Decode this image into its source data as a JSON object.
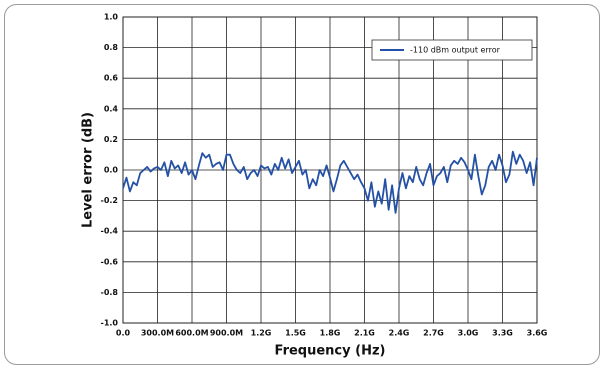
{
  "chart_data": {
    "type": "line",
    "xlabel": "Frequency (Hz)",
    "ylabel": "Level error (dB)",
    "xlim": [
      0,
      3600000000
    ],
    "xticks": [
      {
        "value": 0,
        "label": "0.0"
      },
      {
        "value": 300000000,
        "label": "300.0M"
      },
      {
        "value": 600000000,
        "label": "600.0M"
      },
      {
        "value": 900000000,
        "label": "900.0M"
      },
      {
        "value": 1200000000,
        "label": "1.2G"
      },
      {
        "value": 1500000000,
        "label": "1.5G"
      },
      {
        "value": 1800000000,
        "label": "1.8G"
      },
      {
        "value": 2100000000,
        "label": "2.1G"
      },
      {
        "value": 2400000000,
        "label": "2.4G"
      },
      {
        "value": 2700000000,
        "label": "2.7G"
      },
      {
        "value": 3000000000,
        "label": "3.0G"
      },
      {
        "value": 3300000000,
        "label": "3.3G"
      },
      {
        "value": 3600000000,
        "label": "3.6G"
      }
    ],
    "ylim": [
      -1,
      1
    ],
    "yticks": [
      {
        "value": -1,
        "label": "-1.0"
      },
      -0.8,
      -0.6,
      -0.4,
      -0.2,
      {
        "value": 0,
        "label": "0.0"
      },
      0.2,
      0.4,
      0.6,
      0.8,
      {
        "value": 1,
        "label": "1.0"
      }
    ],
    "grid": true,
    "legend": "upper right",
    "x": [
      0,
      30000000.0,
      60000000.0,
      90000000.0,
      120000000.0,
      150000000.0,
      180000000.0,
      210000000.0,
      240000000.0,
      270000000.0,
      300000000.0,
      330000000.0,
      360000000.0,
      390000000.0,
      420000000.0,
      450000000.0,
      480000000.0,
      510000000.0,
      540000000.0,
      570000000.0,
      600000000.0,
      630000000.0,
      660000000.0,
      690000000.0,
      720000000.0,
      750000000.0,
      780000000.0,
      810000000.0,
      840000000.0,
      870000000.0,
      900000000.0,
      930000000.0,
      960000000.0,
      990000000.0,
      1020000000.0,
      1050000000.0,
      1080000000.0,
      1110000000.0,
      1140000000.0,
      1170000000.0,
      1200000000.0,
      1230000000.0,
      1260000000.0,
      1290000000.0,
      1320000000.0,
      1350000000.0,
      1380000000.0,
      1410000000.0,
      1440000000.0,
      1470000000.0,
      1500000000.0,
      1530000000.0,
      1560000000.0,
      1590000000.0,
      1620000000.0,
      1650000000.0,
      1680000000.0,
      1710000000.0,
      1740000000.0,
      1770000000.0,
      1800000000.0,
      1830000000.0,
      1860000000.0,
      1890000000.0,
      1920000000.0,
      1950000000.0,
      1980000000.0,
      2010000000.0,
      2040000000.0,
      2070000000.0,
      2100000000.0,
      2130000000.0,
      2160000000.0,
      2190000000.0,
      2220000000.0,
      2250000000.0,
      2280000000.0,
      2310000000.0,
      2340000000.0,
      2370000000.0,
      2400000000.0,
      2430000000.0,
      2460000000.0,
      2490000000.0,
      2520000000.0,
      2550000000.0,
      2580000000.0,
      2610000000.0,
      2640000000.0,
      2670000000.0,
      2700000000.0,
      2730000000.0,
      2760000000.0,
      2790000000.0,
      2820000000.0,
      2850000000.0,
      2880000000.0,
      2910000000.0,
      2940000000.0,
      2970000000.0,
      3000000000.0,
      3030000000.0,
      3060000000.0,
      3090000000.0,
      3120000000.0,
      3150000000.0,
      3180000000.0,
      3210000000.0,
      3240000000.0,
      3270000000.0,
      3300000000.0,
      3330000000.0,
      3360000000.0,
      3390000000.0,
      3420000000.0,
      3450000000.0,
      3480000000.0,
      3510000000.0,
      3540000000.0,
      3570000000.0,
      3600000000.0
    ],
    "series": [
      {
        "name": "-110 dBm output error",
        "color": "#2451a6",
        "values": [
          -0.12,
          -0.05,
          -0.14,
          -0.08,
          -0.1,
          -0.02,
          0.0,
          0.02,
          -0.01,
          0.01,
          0.02,
          0.0,
          0.05,
          -0.04,
          0.06,
          0.01,
          0.03,
          -0.02,
          0.05,
          -0.03,
          0.0,
          -0.06,
          0.03,
          0.11,
          0.08,
          0.1,
          0.02,
          0.04,
          0.05,
          0.0,
          0.1,
          0.1,
          0.04,
          0.0,
          -0.02,
          0.02,
          -0.06,
          -0.02,
          0.0,
          -0.04,
          0.03,
          0.01,
          0.02,
          -0.03,
          0.04,
          0.0,
          0.08,
          0.01,
          0.07,
          -0.02,
          0.02,
          0.06,
          -0.03,
          0.0,
          -0.12,
          -0.06,
          -0.1,
          0.0,
          -0.04,
          0.03,
          -0.05,
          -0.14,
          -0.06,
          0.03,
          0.06,
          0.02,
          -0.02,
          -0.06,
          -0.03,
          -0.08,
          -0.12,
          -0.2,
          -0.08,
          -0.24,
          -0.14,
          -0.22,
          -0.06,
          -0.26,
          -0.1,
          -0.28,
          -0.12,
          -0.02,
          -0.12,
          -0.04,
          -0.08,
          0.02,
          -0.06,
          -0.1,
          -0.02,
          0.04,
          -0.1,
          -0.04,
          -0.02,
          0.02,
          -0.08,
          0.03,
          0.06,
          0.04,
          0.08,
          0.05,
          0.0,
          -0.06,
          0.1,
          -0.04,
          -0.16,
          -0.1,
          0.02,
          0.06,
          0.0,
          0.1,
          0.03,
          -0.08,
          -0.03,
          0.12,
          0.04,
          0.1,
          0.06,
          -0.02,
          0.05,
          -0.1,
          0.08
        ]
      }
    ]
  }
}
